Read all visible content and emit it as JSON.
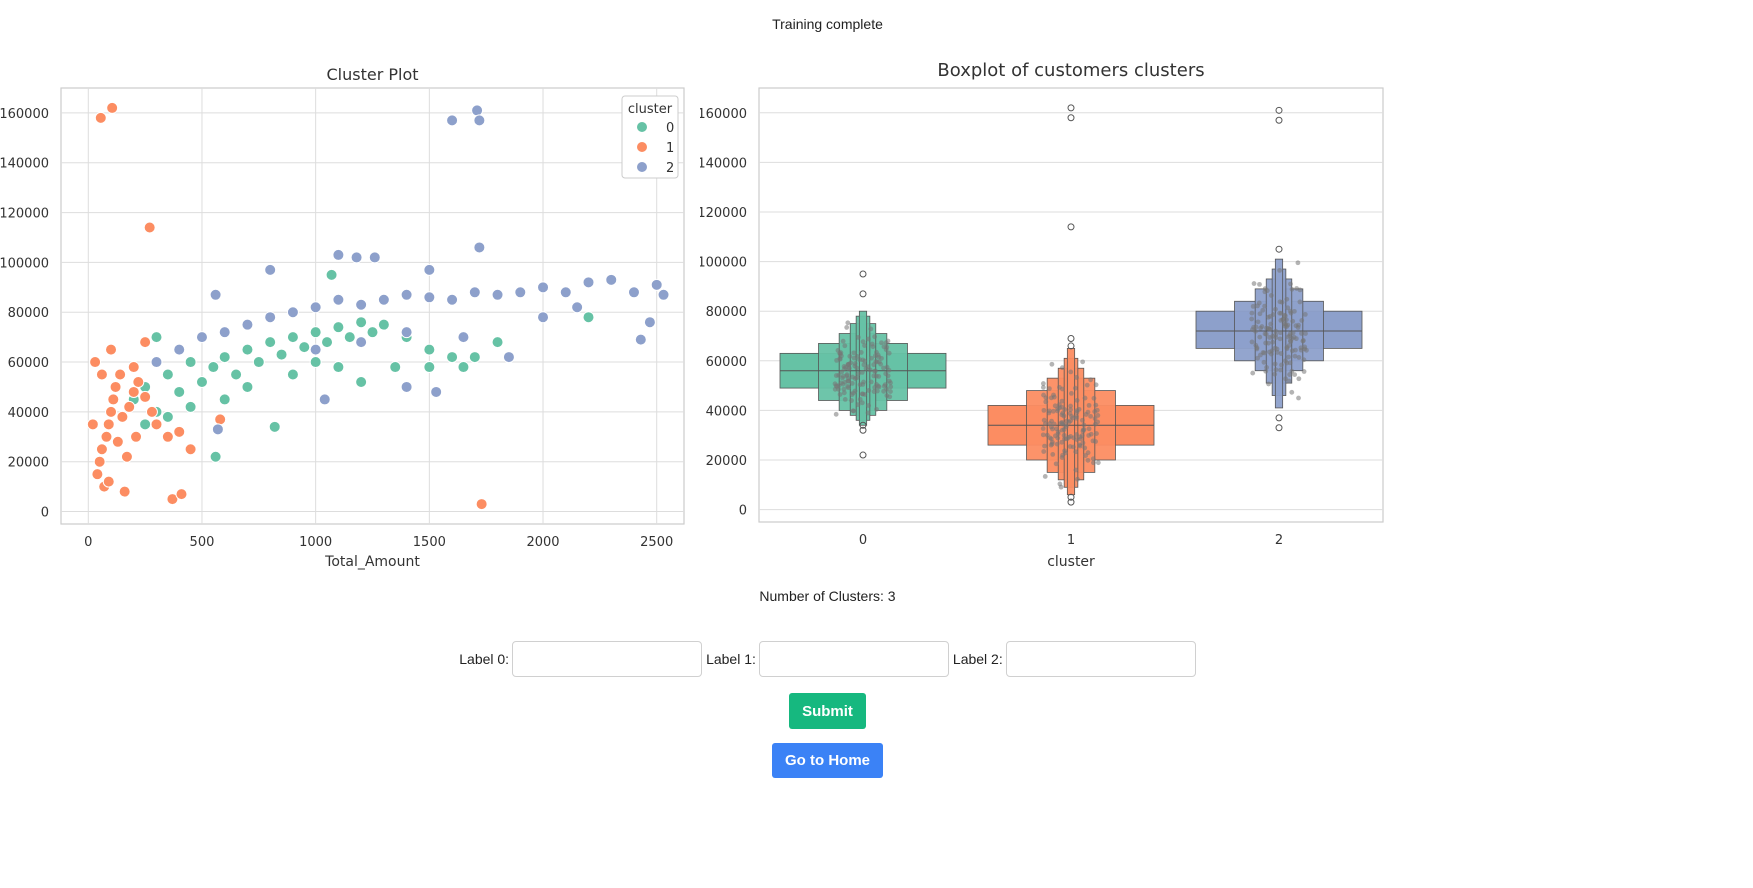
{
  "status_text": "Training complete",
  "clusters_text": "Number of Clusters: 3",
  "labels": [
    {
      "label": "Label 0:",
      "value": "",
      "placeholder": ""
    },
    {
      "label": "Label 1:",
      "value": "",
      "placeholder": ""
    },
    {
      "label": "Label 2:",
      "value": "",
      "placeholder": ""
    }
  ],
  "buttons": {
    "submit": "Submit",
    "home": "Go to Home"
  },
  "colors": {
    "cluster0": "#66c2a5",
    "cluster1": "#fc8d62",
    "cluster2": "#8da0cb",
    "submit": "#16b87f",
    "home": "#3b82f6"
  },
  "chart_data": [
    {
      "type": "scatter",
      "title": "Cluster Plot",
      "xlabel": "Total_Amount",
      "ylabel": "",
      "xlim": [
        -120,
        2620
      ],
      "ylim": [
        -5000,
        170000
      ],
      "xticks": [
        0,
        500,
        1000,
        1500,
        2000,
        2500
      ],
      "yticks": [
        0,
        20000,
        40000,
        60000,
        80000,
        100000,
        120000,
        140000,
        160000
      ],
      "grid": true,
      "legend": {
        "title": "cluster",
        "placement": "top-right",
        "entries": [
          "0",
          "1",
          "2"
        ]
      },
      "series": [
        {
          "name": "0",
          "color": "#66c2a5",
          "points": [
            [
              200,
              45000
            ],
            [
              250,
              50000
            ],
            [
              300,
              40000
            ],
            [
              350,
              55000
            ],
            [
              400,
              48000
            ],
            [
              450,
              60000
            ],
            [
              500,
              52000
            ],
            [
              550,
              58000
            ],
            [
              600,
              62000
            ],
            [
              650,
              55000
            ],
            [
              700,
              65000
            ],
            [
              750,
              60000
            ],
            [
              800,
              68000
            ],
            [
              850,
              63000
            ],
            [
              900,
              70000
            ],
            [
              950,
              66000
            ],
            [
              1000,
              72000
            ],
            [
              1050,
              68000
            ],
            [
              1100,
              74000
            ],
            [
              1150,
              70000
            ],
            [
              1200,
              76000
            ],
            [
              1250,
              72000
            ],
            [
              1300,
              75000
            ],
            [
              1400,
              70000
            ],
            [
              1500,
              65000
            ],
            [
              1600,
              62000
            ],
            [
              1700,
              62000
            ],
            [
              1800,
              68000
            ],
            [
              2200,
              78000
            ],
            [
              560,
              22000
            ],
            [
              820,
              34000
            ],
            [
              1070,
              95000
            ],
            [
              300,
              70000
            ],
            [
              250,
              35000
            ],
            [
              600,
              45000
            ],
            [
              700,
              50000
            ],
            [
              450,
              42000
            ],
            [
              350,
              38000
            ],
            [
              900,
              55000
            ],
            [
              1000,
              60000
            ],
            [
              1100,
              58000
            ],
            [
              1200,
              52000
            ],
            [
              1350,
              58000
            ],
            [
              1500,
              58000
            ],
            [
              1650,
              58000
            ]
          ]
        },
        {
          "name": "1",
          "color": "#fc8d62",
          "points": [
            [
              50,
              20000
            ],
            [
              80,
              30000
            ],
            [
              100,
              40000
            ],
            [
              120,
              50000
            ],
            [
              60,
              25000
            ],
            [
              90,
              35000
            ],
            [
              110,
              45000
            ],
            [
              140,
              55000
            ],
            [
              40,
              15000
            ],
            [
              70,
              10000
            ],
            [
              150,
              38000
            ],
            [
              180,
              42000
            ],
            [
              200,
              48000
            ],
            [
              220,
              52000
            ],
            [
              250,
              46000
            ],
            [
              280,
              40000
            ],
            [
              300,
              35000
            ],
            [
              350,
              30000
            ],
            [
              400,
              32000
            ],
            [
              450,
              25000
            ],
            [
              30,
              60000
            ],
            [
              100,
              65000
            ],
            [
              200,
              58000
            ],
            [
              250,
              68000
            ],
            [
              55,
              158000
            ],
            [
              105,
              162000
            ],
            [
              270,
              114000
            ],
            [
              370,
              5000
            ],
            [
              410,
              7000
            ],
            [
              580,
              37000
            ],
            [
              1730,
              3000
            ],
            [
              160,
              8000
            ],
            [
              60,
              55000
            ],
            [
              130,
              28000
            ],
            [
              170,
              22000
            ],
            [
              90,
              12000
            ],
            [
              20,
              35000
            ],
            [
              210,
              30000
            ]
          ]
        },
        {
          "name": "2",
          "color": "#8da0cb",
          "points": [
            [
              300,
              60000
            ],
            [
              400,
              65000
            ],
            [
              500,
              70000
            ],
            [
              600,
              72000
            ],
            [
              700,
              75000
            ],
            [
              800,
              78000
            ],
            [
              900,
              80000
            ],
            [
              1000,
              82000
            ],
            [
              1100,
              85000
            ],
            [
              1200,
              83000
            ],
            [
              1300,
              85000
            ],
            [
              1400,
              87000
            ],
            [
              1500,
              86000
            ],
            [
              1600,
              85000
            ],
            [
              1700,
              88000
            ],
            [
              1800,
              87000
            ],
            [
              1900,
              88000
            ],
            [
              2000,
              90000
            ],
            [
              2100,
              88000
            ],
            [
              2200,
              92000
            ],
            [
              2300,
              93000
            ],
            [
              2400,
              88000
            ],
            [
              2500,
              91000
            ],
            [
              2530,
              87000
            ],
            [
              2470,
              76000
            ],
            [
              2430,
              69000
            ],
            [
              1600,
              157000
            ],
            [
              1710,
              161000
            ],
            [
              1720,
              157000
            ],
            [
              1720,
              106000
            ],
            [
              1100,
              103000
            ],
            [
              800,
              97000
            ],
            [
              1500,
              97000
            ],
            [
              1000,
              65000
            ],
            [
              1200,
              68000
            ],
            [
              1400,
              72000
            ],
            [
              1650,
              70000
            ],
            [
              1850,
              62000
            ],
            [
              2000,
              78000
            ],
            [
              2150,
              82000
            ],
            [
              570,
              33000
            ],
            [
              1040,
              45000
            ],
            [
              1400,
              50000
            ],
            [
              1530,
              48000
            ],
            [
              1180,
              102000
            ],
            [
              1260,
              102000
            ],
            [
              560,
              87000
            ]
          ]
        }
      ]
    },
    {
      "type": "boxplot",
      "title": "Boxplot of customers clusters",
      "xlabel": "cluster",
      "ylabel": "",
      "categories": [
        "0",
        "1",
        "2"
      ],
      "ylim": [
        -5000,
        170000
      ],
      "yticks": [
        0,
        20000,
        40000,
        60000,
        80000,
        100000,
        120000,
        140000,
        160000
      ],
      "grid": true,
      "boxes": [
        {
          "category": "0",
          "color": "#66c2a5",
          "median": 56000,
          "levels": [
            [
              49000,
              63000
            ],
            [
              44000,
              67000
            ],
            [
              40000,
              71000
            ],
            [
              38000,
              75000
            ],
            [
              36000,
              78000
            ],
            [
              34000,
              80000
            ]
          ],
          "outliers": [
            95000,
            87000,
            22000,
            32000,
            34000
          ]
        },
        {
          "category": "1",
          "color": "#fc8d62",
          "median": 34000,
          "levels": [
            [
              26000,
              42000
            ],
            [
              20000,
              48000
            ],
            [
              15000,
              53000
            ],
            [
              12000,
              57000
            ],
            [
              9000,
              61000
            ],
            [
              6000,
              65000
            ]
          ],
          "outliers": [
            162000,
            158000,
            114000,
            69000,
            66000,
            5000,
            3000
          ]
        },
        {
          "category": "2",
          "color": "#8da0cb",
          "median": 72000,
          "levels": [
            [
              65000,
              80000
            ],
            [
              60000,
              84000
            ],
            [
              56000,
              89000
            ],
            [
              51000,
              93000
            ],
            [
              46000,
              97000
            ],
            [
              41000,
              101000
            ]
          ],
          "outliers": [
            161000,
            157000,
            105000,
            37000,
            33000
          ]
        }
      ]
    }
  ]
}
